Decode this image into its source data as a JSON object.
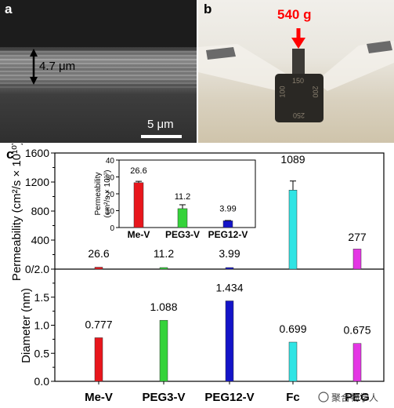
{
  "panels": {
    "a": {
      "label": "a",
      "thickness": "4.7 μm",
      "scale": "5 μm"
    },
    "b": {
      "label": "b",
      "mass": "540 g",
      "knob_numbers": [
        "150",
        "100",
        "200",
        "250"
      ]
    },
    "c": {
      "label": "c"
    }
  },
  "watermark": "聚合物学人",
  "chart_data": [
    {
      "type": "bar",
      "categories": [
        "Me-V",
        "PEG3-V",
        "PEG12-V",
        "Fc",
        "PEG"
      ],
      "values": [
        26.6,
        11.2,
        3.99,
        1089,
        277
      ],
      "data_labels": [
        "26.6",
        "11.2",
        "3.99",
        "1089",
        "277"
      ],
      "errors": [
        0,
        0,
        0,
        125,
        0
      ],
      "colors": [
        "#e8161c",
        "#35d33a",
        "#1414c8",
        "#30e4e4",
        "#e436e4"
      ],
      "ylabel": "Permeability (cm²/s × 10¹⁰)",
      "ylim": [
        0,
        1600
      ],
      "yticks": [
        "0/2.0",
        "400",
        "800",
        "1200",
        "1600"
      ]
    },
    {
      "type": "bar",
      "categories": [
        "Me-V",
        "PEG3-V",
        "PEG12-V"
      ],
      "values": [
        26.6,
        11.2,
        3.99
      ],
      "data_labels": [
        "26.6",
        "11.2",
        "3.99"
      ],
      "errors": [
        0.8,
        2.3,
        0.2
      ],
      "colors": [
        "#e8161c",
        "#35d33a",
        "#1414c8"
      ],
      "ylabel_line1": "Permeability",
      "ylabel_line2": "(cm²/s × 10¹⁰)",
      "ylim": [
        0,
        40
      ],
      "yticks": [
        "0",
        "10",
        "20",
        "30",
        "40"
      ]
    },
    {
      "type": "bar",
      "categories": [
        "Me-V",
        "PEG3-V",
        "PEG12-V",
        "Fc",
        "PEG"
      ],
      "values": [
        0.777,
        1.088,
        1.434,
        0.699,
        0.675
      ],
      "data_labels": [
        "0.777",
        "1.088",
        "1.434",
        "0.699",
        "0.675"
      ],
      "colors": [
        "#e8161c",
        "#35d33a",
        "#1414c8",
        "#30e4e4",
        "#e436e4"
      ],
      "ylabel": "Diameter (nm)",
      "ylim": [
        0,
        2.0
      ],
      "yticks": [
        "0.0",
        "0.5",
        "1.0",
        "1.5"
      ],
      "xtick_labels": [
        "Me-V",
        "PEG3-V",
        "PEG12-V",
        "Fc",
        "PEG"
      ]
    }
  ]
}
